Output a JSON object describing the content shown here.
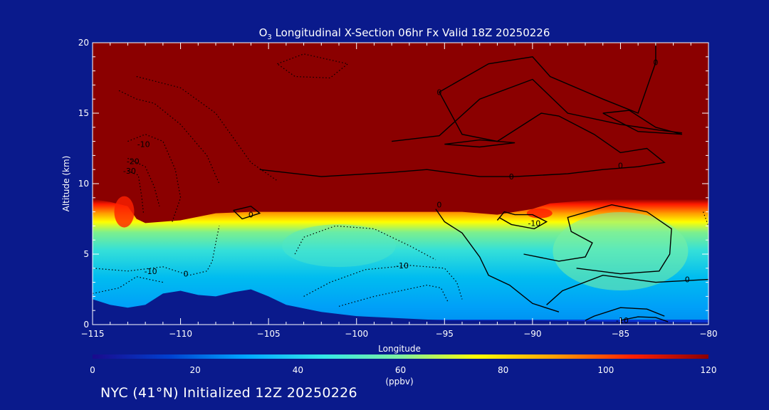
{
  "chart_data": {
    "type": "contour",
    "title": "O",
    "title_sub": "3",
    "title_rest": " Longitudinal X-Section 06hr  Fx Valid 18Z 20250226",
    "xlabel": "Longitude",
    "ylabel": "Altitude (km)",
    "xlim": [
      -115,
      -80
    ],
    "ylim": [
      0,
      20
    ],
    "x_ticks": [
      -115,
      -110,
      -105,
      -100,
      -95,
      -90,
      -85,
      -80
    ],
    "x_tick_labels": [
      "−115",
      "−110",
      "−105",
      "−100",
      "−95",
      "−90",
      "−85",
      "−80"
    ],
    "y_ticks": [
      0,
      5,
      10,
      15,
      20
    ],
    "y_tick_labels": [
      "0",
      "5",
      "10",
      "15",
      "20"
    ],
    "colorbar": {
      "label": "(ppbv)",
      "range": [
        0,
        120
      ],
      "ticks": [
        0,
        20,
        40,
        60,
        80,
        100,
        120
      ],
      "tick_labels": [
        "0",
        "20",
        "40",
        "60",
        "80",
        "100",
        "120"
      ],
      "colors": [
        "#1a0a8c",
        "#0040d0",
        "#00a8ff",
        "#33e8e8",
        "#7ef0a0",
        "#ffff00",
        "#ffa000",
        "#ff2000",
        "#8b0000"
      ]
    },
    "tropopause_height_km": [
      [
        -115,
        8.9
      ],
      [
        -114,
        8.7
      ],
      [
        -113,
        8.4
      ],
      [
        -112.5,
        7.5
      ],
      [
        -112,
        7.2
      ],
      [
        -110,
        7.4
      ],
      [
        -108,
        7.9
      ],
      [
        -106,
        8.0
      ],
      [
        -104,
        8.0
      ],
      [
        -100,
        8.0
      ],
      [
        -97,
        8.0
      ],
      [
        -94,
        8.0
      ],
      [
        -92,
        7.8
      ],
      [
        -90,
        8.2
      ],
      [
        -89,
        8.6
      ],
      [
        -87,
        8.8
      ],
      [
        -85,
        8.9
      ],
      [
        -80,
        8.9
      ]
    ],
    "terrain_height_km": [
      [
        -115,
        1.8
      ],
      [
        -114,
        1.4
      ],
      [
        -113,
        1.2
      ],
      [
        -112,
        1.4
      ],
      [
        -111,
        2.2
      ],
      [
        -110,
        2.4
      ],
      [
        -109,
        2.1
      ],
      [
        -108,
        2.0
      ],
      [
        -107,
        2.3
      ],
      [
        -106,
        2.5
      ],
      [
        -105,
        2.0
      ],
      [
        -104,
        1.4
      ],
      [
        -102,
        0.9
      ],
      [
        -100,
        0.6
      ],
      [
        -95,
        0.3
      ],
      [
        -90,
        0.3
      ],
      [
        -85,
        0.2
      ],
      [
        -80,
        0.15
      ]
    ],
    "contour_labels": [
      {
        "value": "-10",
        "x": -112.1,
        "y": 12.8
      },
      {
        "value": "-20",
        "x": -112.7,
        "y": 11.6
      },
      {
        "value": "-30",
        "x": -112.9,
        "y": 10.9
      },
      {
        "value": "-10",
        "x": -111.7,
        "y": 3.8
      },
      {
        "value": "0",
        "x": -109.7,
        "y": 3.6
      },
      {
        "value": "-10",
        "x": -97.4,
        "y": 4.2
      },
      {
        "value": "0",
        "x": -91.2,
        "y": 10.5
      },
      {
        "value": "0",
        "x": -85.0,
        "y": 11.3
      },
      {
        "value": "0",
        "x": -95.3,
        "y": 8.5
      },
      {
        "value": "0",
        "x": -106.0,
        "y": 7.8
      },
      {
        "value": "0",
        "x": -95.3,
        "y": 16.5
      },
      {
        "value": "0",
        "x": -83.0,
        "y": 18.6
      },
      {
        "value": "-10",
        "x": -89.9,
        "y": 7.2
      },
      {
        "value": "0",
        "x": -81.2,
        "y": 3.2
      },
      {
        "value": "-10",
        "x": -84.9,
        "y": 0.3
      }
    ]
  },
  "footer": "NYC (41°N) Initialized 12Z 20250226"
}
